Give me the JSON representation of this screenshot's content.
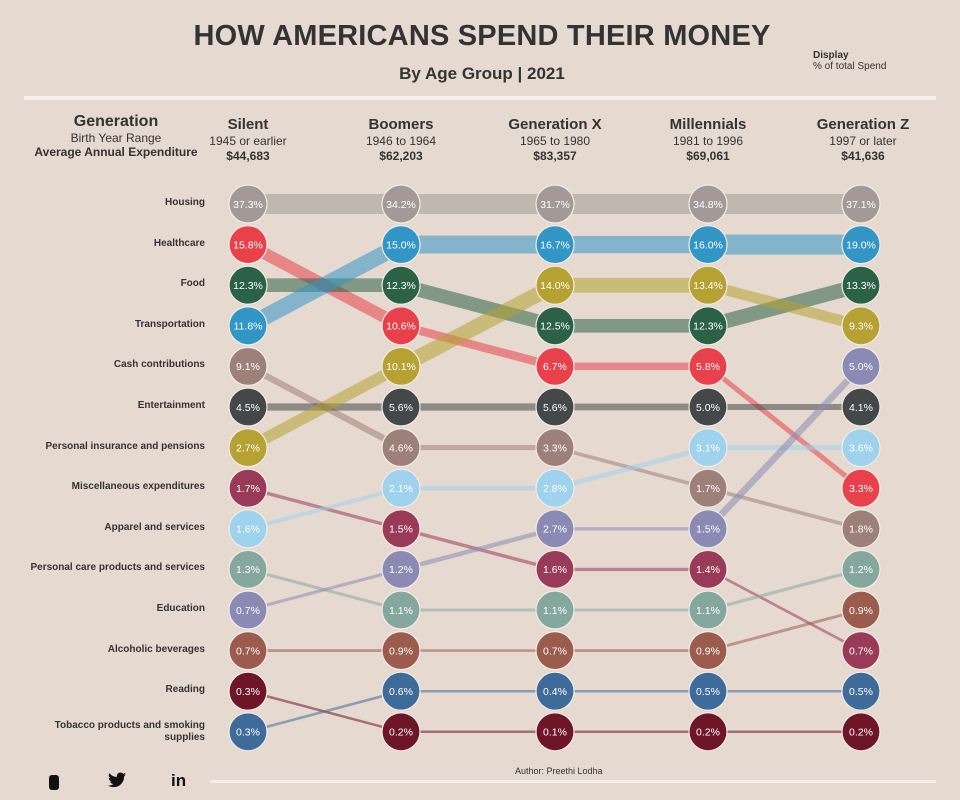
{
  "title": "HOW AMERICANS SPEND THEIR MONEY",
  "subtitle": "By Age Group | 2021",
  "display": {
    "label": "Display",
    "value": "% of total Spend"
  },
  "legend": {
    "generation": "Generation",
    "birth_year_range": "Birth Year Range",
    "avg_expenditure": "Average Annual Expenditure"
  },
  "author": "Author: Preethi Lodha",
  "social_icons": [
    "generic-app-icon",
    "twitter-icon",
    "linkedin-icon"
  ],
  "chart_data": {
    "type": "bump",
    "title": "HOW AMERICANS SPEND THEIR MONEY",
    "subtitle": "By Age Group | 2021",
    "value_unit": "% of total spend",
    "generations": [
      {
        "name": "Silent",
        "range": "1945 or earlier",
        "expenditure": "$44,683"
      },
      {
        "name": "Boomers",
        "range": "1946 to 1964",
        "expenditure": "$62,203"
      },
      {
        "name": "Generation X",
        "range": "1965 to 1980",
        "expenditure": "$83,357"
      },
      {
        "name": "Millennials",
        "range": "1981 to 1996",
        "expenditure": "$69,061"
      },
      {
        "name": "Generation Z",
        "range": "1997 or later",
        "expenditure": "$41,636"
      }
    ],
    "row_labels": [
      "Housing",
      "Healthcare",
      "Food",
      "Transportation",
      "Cash contributions",
      "Entertainment",
      "Personal insurance and pensions",
      "Miscellaneous expenditures",
      "Apparel and services",
      "Personal care products and services",
      "Education",
      "Alcoholic beverages",
      "Reading",
      "Tobacco products and smoking supplies"
    ],
    "series": [
      {
        "name": "Housing",
        "color": "#a39a97",
        "ranks": [
          1,
          1,
          1,
          1,
          1
        ],
        "values": [
          "37.3%",
          "34.2%",
          "31.7%",
          "34.8%",
          "37.1%"
        ]
      },
      {
        "name": "Healthcare",
        "color": "#e8414b",
        "ranks": [
          2,
          4,
          5,
          5,
          8
        ],
        "values": [
          "15.8%",
          "10.6%",
          "6.7%",
          "5.8%",
          "3.3%"
        ]
      },
      {
        "name": "Food",
        "color": "#2b6245",
        "ranks": [
          3,
          3,
          4,
          4,
          3
        ],
        "values": [
          "12.3%",
          "12.3%",
          "12.5%",
          "12.3%",
          "13.3%"
        ]
      },
      {
        "name": "Transportation",
        "color": "#3195c6",
        "ranks": [
          4,
          2,
          2,
          2,
          2
        ],
        "values": [
          "11.8%",
          "15.0%",
          "16.7%",
          "16.0%",
          "19.0%"
        ]
      },
      {
        "name": "Cash contributions",
        "color": "#9c8079",
        "ranks": [
          5,
          7,
          7,
          8,
          9
        ],
        "values": [
          "9.1%",
          "4.6%",
          "3.3%",
          "1.7%",
          "1.8%"
        ]
      },
      {
        "name": "Entertainment",
        "color": "#454849",
        "ranks": [
          6,
          6,
          6,
          6,
          6
        ],
        "values": [
          "4.5%",
          "5.6%",
          "5.6%",
          "5.0%",
          "4.1%"
        ]
      },
      {
        "name": "Personal insurance and pensions",
        "color": "#b5a232",
        "ranks": [
          7,
          5,
          3,
          3,
          4
        ],
        "values": [
          "2.7%",
          "10.1%",
          "14.0%",
          "13.4%",
          "9.3%"
        ]
      },
      {
        "name": "Miscellaneous expenditures",
        "color": "#9a3a59",
        "ranks": [
          8,
          9,
          10,
          10,
          12
        ],
        "values": [
          "1.7%",
          "1.5%",
          "1.6%",
          "1.4%",
          "0.7%"
        ]
      },
      {
        "name": "Apparel and services",
        "color": "#9fd2ec",
        "ranks": [
          9,
          8,
          8,
          7,
          7
        ],
        "values": [
          "1.6%",
          "2.1%",
          "2.8%",
          "3.1%",
          "3.6%"
        ]
      },
      {
        "name": "Personal care products and services",
        "color": "#85a89e",
        "ranks": [
          10,
          11,
          11,
          11,
          10
        ],
        "values": [
          "1.3%",
          "1.1%",
          "1.1%",
          "1.1%",
          "1.2%"
        ]
      },
      {
        "name": "Education",
        "color": "#8a8ab4",
        "ranks": [
          11,
          10,
          9,
          9,
          5
        ],
        "values": [
          "0.7%",
          "1.2%",
          "2.7%",
          "1.5%",
          "5.0%"
        ]
      },
      {
        "name": "Alcoholic beverages",
        "color": "#9b5c4d",
        "ranks": [
          12,
          12,
          12,
          12,
          11
        ],
        "values": [
          "0.7%",
          "0.9%",
          "0.7%",
          "0.9%",
          "0.9%"
        ]
      },
      {
        "name": "Reading",
        "color": "#6e1628",
        "ranks": [
          13,
          14,
          14,
          14,
          14
        ],
        "values": [
          "0.3%",
          "0.2%",
          "0.1%",
          "0.2%",
          "0.2%"
        ]
      },
      {
        "name": "Tobacco products and smoking supplies",
        "color": "#3f6b9a",
        "ranks": [
          14,
          13,
          13,
          13,
          13
        ],
        "values": [
          "0.3%",
          "0.6%",
          "0.4%",
          "0.5%",
          "0.5%"
        ]
      }
    ]
  }
}
